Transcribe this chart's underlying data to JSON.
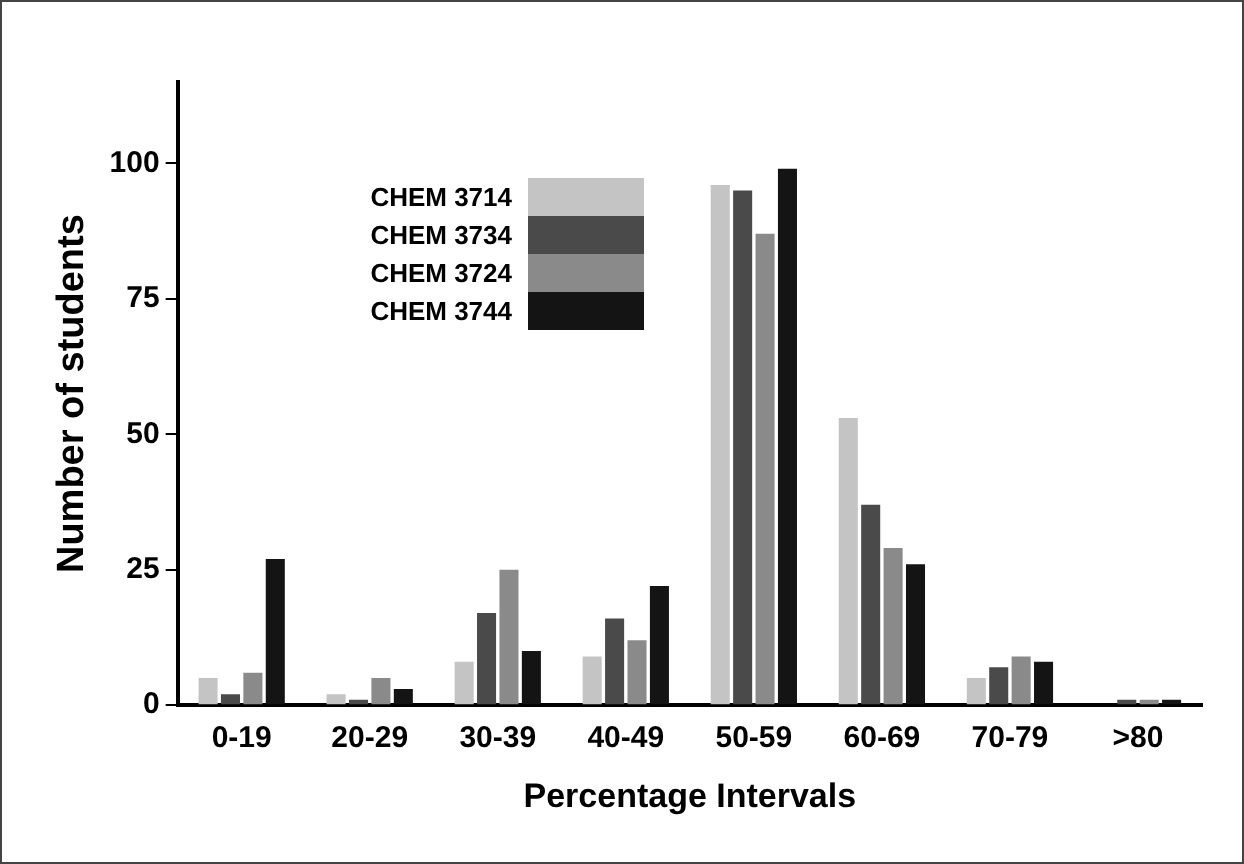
{
  "chart_data": {
    "type": "bar",
    "xlabel": "Percentage Intervals",
    "ylabel": "Number of students",
    "categories": [
      "0-19",
      "20-29",
      "30-39",
      "40-49",
      "50-59",
      "60-69",
      "70-79",
      ">80"
    ],
    "series": [
      {
        "name": "CHEM 3714",
        "color": "#c4c4c4",
        "values": [
          5,
          2,
          8,
          9,
          96,
          53,
          5,
          0
        ]
      },
      {
        "name": "CHEM 3734",
        "color": "#4a4a4a",
        "values": [
          2,
          1,
          17,
          16,
          95,
          37,
          7,
          1
        ]
      },
      {
        "name": "CHEM 3724",
        "color": "#8a8a8a",
        "values": [
          6,
          5,
          25,
          12,
          87,
          29,
          9,
          1
        ]
      },
      {
        "name": "CHEM 3744",
        "color": "#141414",
        "values": [
          27,
          3,
          10,
          22,
          99,
          26,
          8,
          1
        ]
      }
    ],
    "ylim": [
      0,
      115
    ],
    "yticks": [
      0,
      25,
      50,
      75,
      100
    ],
    "grid": false,
    "legend": "top left"
  }
}
